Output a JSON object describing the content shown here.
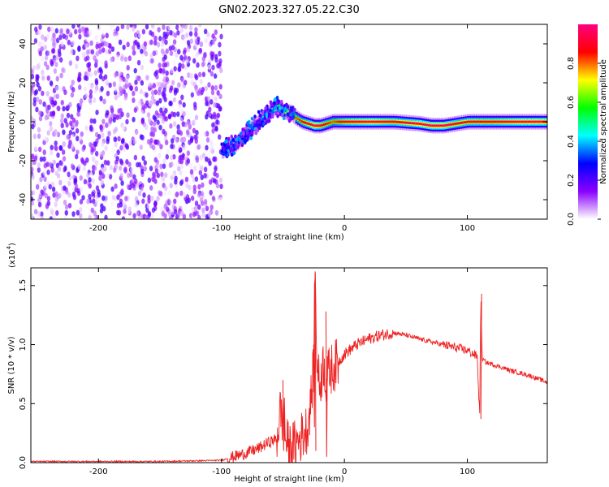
{
  "title": "GN02.2023.327.05.22.C30",
  "chart_data": [
    {
      "type": "heatmap",
      "xlabel": "Height of straight line (km)",
      "ylabel": "Frequency (Hz)",
      "xlim": [
        -255,
        165
      ],
      "ylim": [
        -50,
        50
      ],
      "x_ticks": [
        -200,
        -100,
        0,
        100
      ],
      "x_tick_labels": [
        "-200",
        "-100",
        "0",
        "100"
      ],
      "y_ticks": [
        -40,
        -20,
        0,
        20,
        40
      ],
      "y_tick_labels": [
        "-40",
        "-20",
        "0",
        "20",
        "40"
      ],
      "colorbar": {
        "label": "Normalized spectral amplitude",
        "range": [
          0,
          1
        ],
        "ticks": [
          0,
          0.2,
          0.4,
          0.6,
          0.8
        ],
        "tick_labels": [
          "0.0",
          "0.2",
          "0.4",
          "0.6",
          "0.8"
        ],
        "colormap": [
          "#ffffff",
          "#8a00ff",
          "#0000ff",
          "#00ffff",
          "#00ff00",
          "#ffff00",
          "#ff0000",
          "#ff0080"
        ]
      },
      "noise_region": {
        "x_range": [
          -255,
          -100
        ],
        "freq_range": [
          -50,
          50
        ]
      },
      "ridge": {
        "x": [
          -100,
          -90,
          -80,
          -70,
          -60,
          -55,
          -50,
          -45,
          -40,
          -35,
          -30,
          -25,
          -20,
          -15,
          -10,
          0,
          20,
          40,
          60,
          70,
          80,
          90,
          100,
          120,
          140,
          165
        ],
        "freq": [
          -15,
          -12,
          -6,
          0,
          6,
          8,
          5,
          5,
          2,
          0,
          -1,
          -2,
          -2,
          -1,
          0,
          0,
          0,
          0,
          -1,
          -2,
          -2,
          -1,
          0,
          0,
          0,
          0
        ],
        "peak_amplitude": [
          0.35,
          0.35,
          0.38,
          0.4,
          0.45,
          0.5,
          0.65,
          0.7,
          0.8,
          0.85,
          0.9,
          0.95,
          0.9,
          0.85,
          0.8,
          0.9,
          0.95,
          0.9,
          0.95,
          0.95,
          0.95,
          0.9,
          0.9,
          0.9,
          0.95,
          0.95
        ]
      }
    },
    {
      "type": "line",
      "xlabel": "Height of straight line (km)",
      "ylabel": "SNR (10 * v/v)",
      "y_multiplier_label": "(x10",
      "y_multiplier_exp": "4",
      "y_multiplier_close": ")",
      "xlim": [
        -255,
        165
      ],
      "ylim": [
        0,
        1.65
      ],
      "x_ticks": [
        -200,
        -100,
        0,
        100
      ],
      "x_tick_labels": [
        "-200",
        "-100",
        "0",
        "100"
      ],
      "y_ticks": [
        0,
        0.5,
        1.0,
        1.5
      ],
      "y_tick_labels": [
        "0.0",
        "0.5",
        "1.0",
        "1.5"
      ],
      "color": "#ee2222",
      "series": [
        {
          "x": [
            -255,
            -200,
            -150,
            -100,
            -90,
            -80,
            -75,
            -70,
            -65,
            -60,
            -55,
            -52,
            -50,
            -48,
            -45,
            -40,
            -35,
            -30,
            -27,
            -25,
            -24,
            -22,
            -20,
            -17,
            -15,
            -12,
            -10,
            -5,
            0,
            10,
            20,
            30,
            40,
            50,
            60,
            80,
            100,
            108,
            110,
            111,
            112,
            115,
            130,
            135,
            150,
            165
          ],
          "values": [
            0.01,
            0.01,
            0.01,
            0.02,
            0.05,
            0.08,
            0.1,
            0.12,
            0.15,
            0.18,
            0.2,
            0.45,
            0.35,
            0.2,
            0.12,
            0.15,
            0.22,
            0.3,
            0.55,
            0.8,
            1.65,
            0.8,
            0.65,
            0.85,
            0.7,
            0.78,
            0.8,
            0.85,
            0.92,
            1.0,
            1.05,
            1.08,
            1.1,
            1.08,
            1.05,
            1.0,
            0.95,
            0.9,
            0.4,
            1.45,
            0.88,
            0.85,
            0.8,
            0.78,
            0.74,
            0.68
          ]
        }
      ],
      "spikes": [
        {
          "x": -50,
          "values": [
            0.7,
            0.1,
            0.55,
            0.2
          ]
        },
        {
          "x": -25,
          "values": [
            1.0,
            0.3,
            1.62,
            0.1
          ]
        },
        {
          "x": -15,
          "values": [
            1.28,
            0.05,
            0.9
          ]
        },
        {
          "x": 111,
          "values": [
            0.37,
            1.43
          ]
        }
      ]
    }
  ]
}
